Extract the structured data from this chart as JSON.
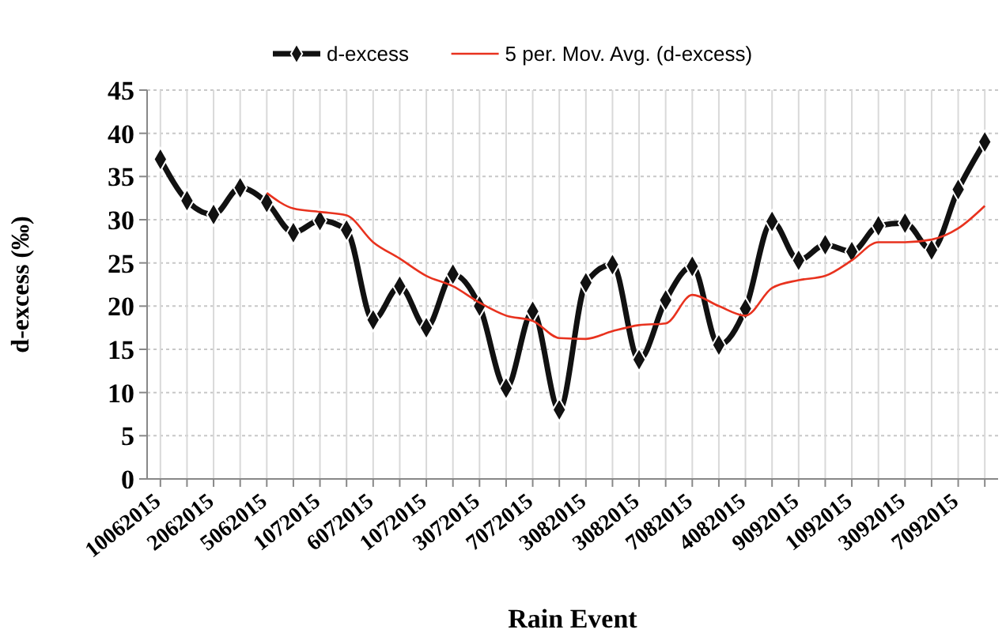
{
  "chart_data": {
    "type": "line",
    "xlabel": "Rain Event",
    "ylabel": "d-excess (‰)",
    "categories": [
      "10062015",
      null,
      "2062015",
      null,
      "5062015",
      null,
      "1072015",
      null,
      "6072015",
      null,
      "1072015",
      null,
      "3072015",
      null,
      "7072015",
      null,
      "3082015",
      null,
      "3082015",
      null,
      "7082015",
      null,
      "4082015",
      null,
      "9092015",
      null,
      "1092015",
      null,
      "3092015",
      null,
      "7092015",
      null
    ],
    "series": [
      {
        "name": "d-excess",
        "color": "#111111",
        "marker": "diamond",
        "values": [
          37.0,
          32.2,
          30.6,
          33.7,
          32.0,
          28.5,
          29.9,
          28.8,
          18.4,
          22.3,
          17.5,
          23.7,
          20.0,
          10.5,
          19.4,
          8.0,
          22.7,
          24.8,
          13.8,
          20.7,
          24.6,
          15.5,
          19.7,
          29.8,
          25.3,
          27.1,
          26.3,
          29.3,
          29.6,
          26.5,
          33.5,
          39.0
        ]
      },
      {
        "name": "5 per. Mov. Avg. (d-excess)",
        "color": "#e8321e",
        "marker": "none",
        "values": [
          null,
          null,
          null,
          null,
          33.1,
          31.3,
          30.9,
          30.5,
          27.4,
          25.5,
          23.5,
          22.3,
          20.4,
          18.9,
          18.3,
          16.3,
          16.2,
          17.1,
          17.8,
          18.0,
          21.3,
          20.0,
          18.9,
          22.1,
          23.0,
          23.5,
          25.3,
          27.4,
          27.4,
          27.7,
          29.0,
          31.6
        ]
      }
    ],
    "ylim": [
      0,
      45
    ],
    "yticks": [
      0,
      5,
      10,
      15,
      20,
      25,
      30,
      35,
      40,
      45
    ],
    "grid": true,
    "legend": "top"
  }
}
